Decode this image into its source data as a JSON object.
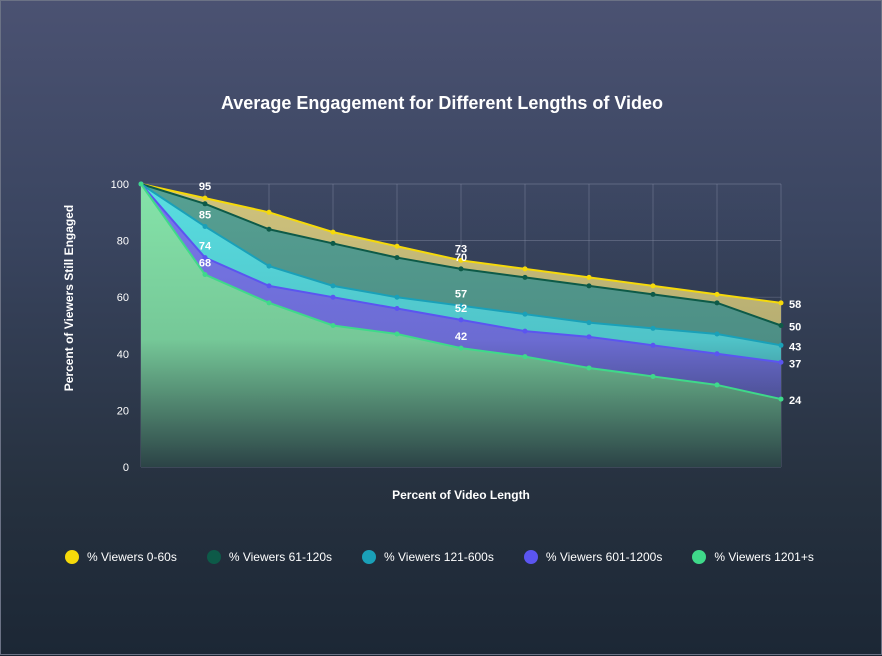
{
  "chart_data": {
    "type": "area",
    "title": "Average Engagement for Different Lengths of Video",
    "xlabel": "Percent of Video Length",
    "ylabel": "Percent of Viewers Still Engaged",
    "ylim": [
      0,
      100
    ],
    "yticks": [
      "0",
      "20",
      "40",
      "60",
      "80",
      "100"
    ],
    "x": [
      0,
      10,
      20,
      30,
      40,
      50,
      60,
      70,
      80,
      90,
      100
    ],
    "grid": true,
    "legend_position": "bottom",
    "series": [
      {
        "name": "% Viewers 0-60s",
        "color": "#f5d90a",
        "fill": "#d9cb7e",
        "values": [
          100,
          95,
          90,
          83,
          78,
          73,
          70,
          67,
          64,
          61,
          58
        ]
      },
      {
        "name": "% Viewers 61-120s",
        "color": "#0d5a48",
        "fill": "#4f9f95",
        "values": [
          100,
          93,
          84,
          79,
          74,
          70,
          67,
          64,
          61,
          58,
          50
        ]
      },
      {
        "name": "% Viewers 121-600s",
        "color": "#1aa0b8",
        "fill": "#5ae3e6",
        "values": [
          100,
          85,
          71,
          64,
          60,
          57,
          54,
          51,
          49,
          47,
          43
        ]
      },
      {
        "name": "% Viewers 601-1200s",
        "color": "#5b55f0",
        "fill": "#7c72ee",
        "values": [
          100,
          74,
          64,
          60,
          56,
          52,
          48,
          46,
          43,
          40,
          37
        ]
      },
      {
        "name": "% Viewers 1201+s",
        "color": "#3fd98a",
        "fill": "#86eaa4",
        "values": [
          100,
          68,
          58,
          50,
          47,
          42,
          39,
          35,
          32,
          29,
          24
        ]
      }
    ],
    "annotations": [
      {
        "series": 0,
        "x": 10,
        "text": "95"
      },
      {
        "series": 2,
        "x": 10,
        "text": "85"
      },
      {
        "series": 3,
        "x": 10,
        "text": "74"
      },
      {
        "series": 4,
        "x": 10,
        "text": "68"
      },
      {
        "series": 0,
        "x": 50,
        "text": "73"
      },
      {
        "series": 1,
        "x": 50,
        "text": "70"
      },
      {
        "series": 2,
        "x": 50,
        "text": "57"
      },
      {
        "series": 3,
        "x": 50,
        "text": "52"
      },
      {
        "series": 4,
        "x": 50,
        "text": "42"
      },
      {
        "series": 0,
        "x": 100,
        "text": "58"
      },
      {
        "series": 1,
        "x": 100,
        "text": "50"
      },
      {
        "series": 2,
        "x": 100,
        "text": "43"
      },
      {
        "series": 3,
        "x": 100,
        "text": "37"
      },
      {
        "series": 4,
        "x": 100,
        "text": "24"
      }
    ]
  }
}
